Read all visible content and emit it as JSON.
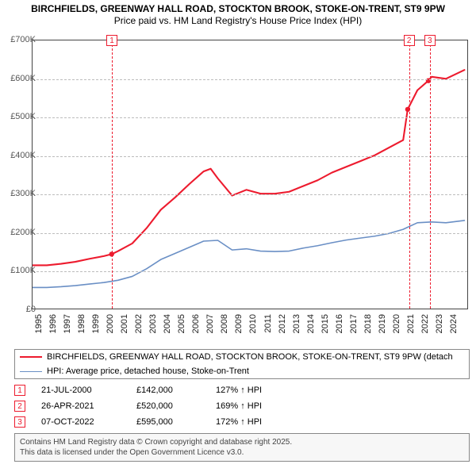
{
  "title_line1": "BIRCHFIELDS, GREENWAY HALL ROAD, STOCKTON BROOK, STOKE-ON-TRENT, ST9 9PW",
  "title_line2": "Price paid vs. HM Land Registry's House Price Index (HPI)",
  "chart": {
    "type": "line",
    "background_color": "#ffffff",
    "grid_color": "#bdbdbd",
    "border_color": "#444444",
    "xlim": [
      1995,
      2025.5
    ],
    "ylim": [
      0,
      700000
    ],
    "ytick_labels": [
      "£0",
      "£100K",
      "£200K",
      "£300K",
      "£400K",
      "£500K",
      "£600K",
      "£700K"
    ],
    "ytick_values": [
      0,
      100000,
      200000,
      300000,
      400000,
      500000,
      600000,
      700000
    ],
    "ytick_fontsize": 11,
    "xtick_values": [
      1995,
      1996,
      1997,
      1998,
      1999,
      2000,
      2001,
      2002,
      2003,
      2004,
      2005,
      2006,
      2007,
      2008,
      2009,
      2010,
      2011,
      2012,
      2013,
      2014,
      2015,
      2016,
      2017,
      2018,
      2019,
      2020,
      2021,
      2022,
      2023,
      2024
    ],
    "xtick_fontsize": 11,
    "series": [
      {
        "name": "property",
        "color": "#ed1b2e",
        "width": 2.1,
        "x": [
          1995,
          1996,
          1997,
          1998,
          1999,
          2000,
          2000.55,
          2001,
          2002,
          2003,
          2004,
          2005,
          2006,
          2007,
          2007.5,
          2008,
          2009,
          2010,
          2011,
          2012,
          2013,
          2014,
          2015,
          2016,
          2017,
          2018,
          2019,
          2020,
          2021,
          2021.32,
          2022,
          2022.77,
          2023,
          2024,
          2025.3
        ],
        "y": [
          113000,
          113000,
          117000,
          122000,
          130000,
          137000,
          142000,
          150000,
          170000,
          210000,
          258000,
          290000,
          325000,
          358000,
          365000,
          340000,
          295000,
          310000,
          300000,
          300000,
          305000,
          320000,
          335000,
          355000,
          370000,
          385000,
          400000,
          420000,
          440000,
          520000,
          570000,
          595000,
          605000,
          600000,
          623000
        ],
        "markers": [
          {
            "x": 2000.55,
            "y": 142000
          },
          {
            "x": 2021.32,
            "y": 520000
          },
          {
            "x": 2022.77,
            "y": 595000
          }
        ],
        "marker_radius": 3.2
      },
      {
        "name": "hpi",
        "color": "#6a8fc5",
        "width": 1.6,
        "x": [
          1995,
          1996,
          1997,
          1998,
          1999,
          2000,
          2001,
          2002,
          2003,
          2004,
          2005,
          2006,
          2007,
          2008,
          2009,
          2010,
          2011,
          2012,
          2013,
          2014,
          2015,
          2016,
          2017,
          2018,
          2019,
          2020,
          2021,
          2022,
          2023,
          2024,
          2025.3
        ],
        "y": [
          55000,
          55000,
          57000,
          60000,
          64000,
          68000,
          74000,
          84000,
          104000,
          128000,
          144000,
          160000,
          176000,
          178000,
          153000,
          156000,
          150000,
          149000,
          150000,
          158000,
          164000,
          172000,
          179000,
          184000,
          189000,
          196000,
          207000,
          224000,
          226000,
          224000,
          230000
        ]
      }
    ],
    "vrules": [
      {
        "n": "1",
        "x": 2000.55
      },
      {
        "n": "2",
        "x": 2021.32
      },
      {
        "n": "3",
        "x": 2022.77
      }
    ],
    "vrule_color": "#ed1b2e"
  },
  "legend": {
    "items": [
      {
        "color": "#ed1b2e",
        "width": 2.5,
        "label": "BIRCHFIELDS, GREENWAY HALL ROAD, STOCKTON BROOK, STOKE-ON-TRENT, ST9 9PW (detach"
      },
      {
        "color": "#6a8fc5",
        "width": 1.6,
        "label": "HPI: Average price, detached house, Stoke-on-Trent"
      }
    ]
  },
  "events": [
    {
      "n": "1",
      "date": "21-JUL-2000",
      "price": "£142,000",
      "ratio": "127% ↑ HPI"
    },
    {
      "n": "2",
      "date": "26-APR-2021",
      "price": "£520,000",
      "ratio": "169% ↑ HPI"
    },
    {
      "n": "3",
      "date": "07-OCT-2022",
      "price": "£595,000",
      "ratio": "172% ↑ HPI"
    }
  ],
  "footer_line1": "Contains HM Land Registry data © Crown copyright and database right 2025.",
  "footer_line2": "This data is licensed under the Open Government Licence v3.0."
}
